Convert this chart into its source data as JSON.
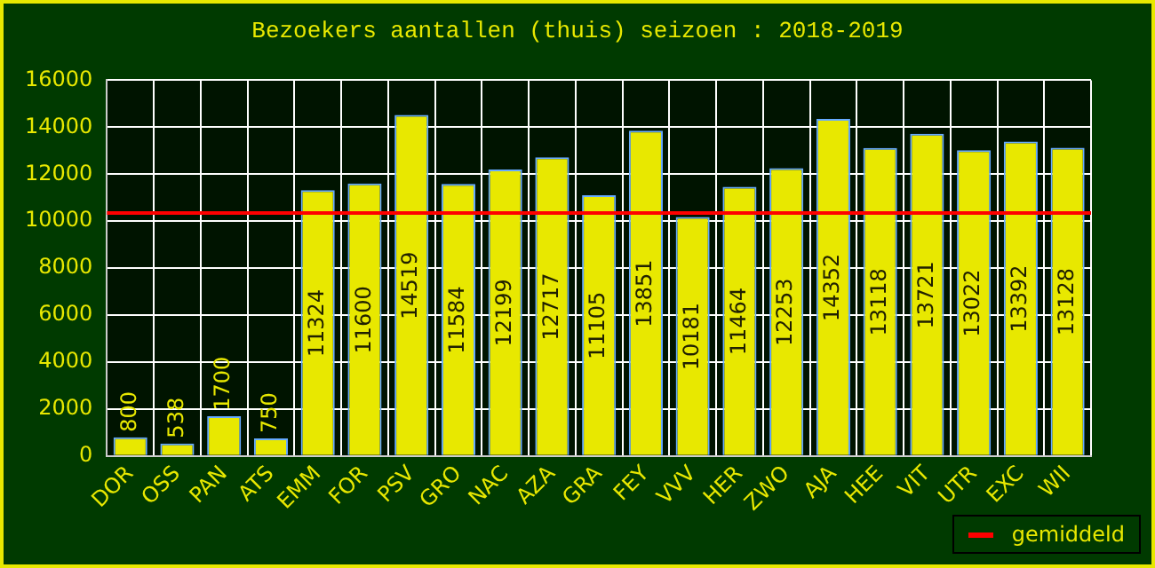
{
  "chart_data": {
    "type": "bar",
    "title": "Bezoekers aantallen (thuis) seizoen : 2018-2019",
    "categories": [
      "DOR",
      "OSS",
      "PAN",
      "ATS",
      "EMM",
      "FOR",
      "PSV",
      "GRO",
      "NAC",
      "AZA",
      "GRA",
      "FEY",
      "VVV",
      "HER",
      "ZWO",
      "AJA",
      "HEE",
      "VIT",
      "UTR",
      "EXC",
      "WII"
    ],
    "values": [
      800,
      538,
      1700,
      750,
      11324,
      11600,
      14519,
      11584,
      12199,
      12717,
      11105,
      13851,
      10181,
      11464,
      12253,
      14352,
      13118,
      13721,
      13022,
      13392,
      13128
    ],
    "color": "#e8e800",
    "data_labels": true,
    "ylim": [
      0,
      16000
    ],
    "yticks": [
      0,
      2000,
      4000,
      6000,
      8000,
      10000,
      12000,
      14000,
      16000
    ],
    "grid": true,
    "ref_lines": [
      {
        "axis": "y",
        "value": 10349,
        "label": "gemiddeld",
        "color": "#ff0000"
      }
    ],
    "legend": "bottom right"
  }
}
